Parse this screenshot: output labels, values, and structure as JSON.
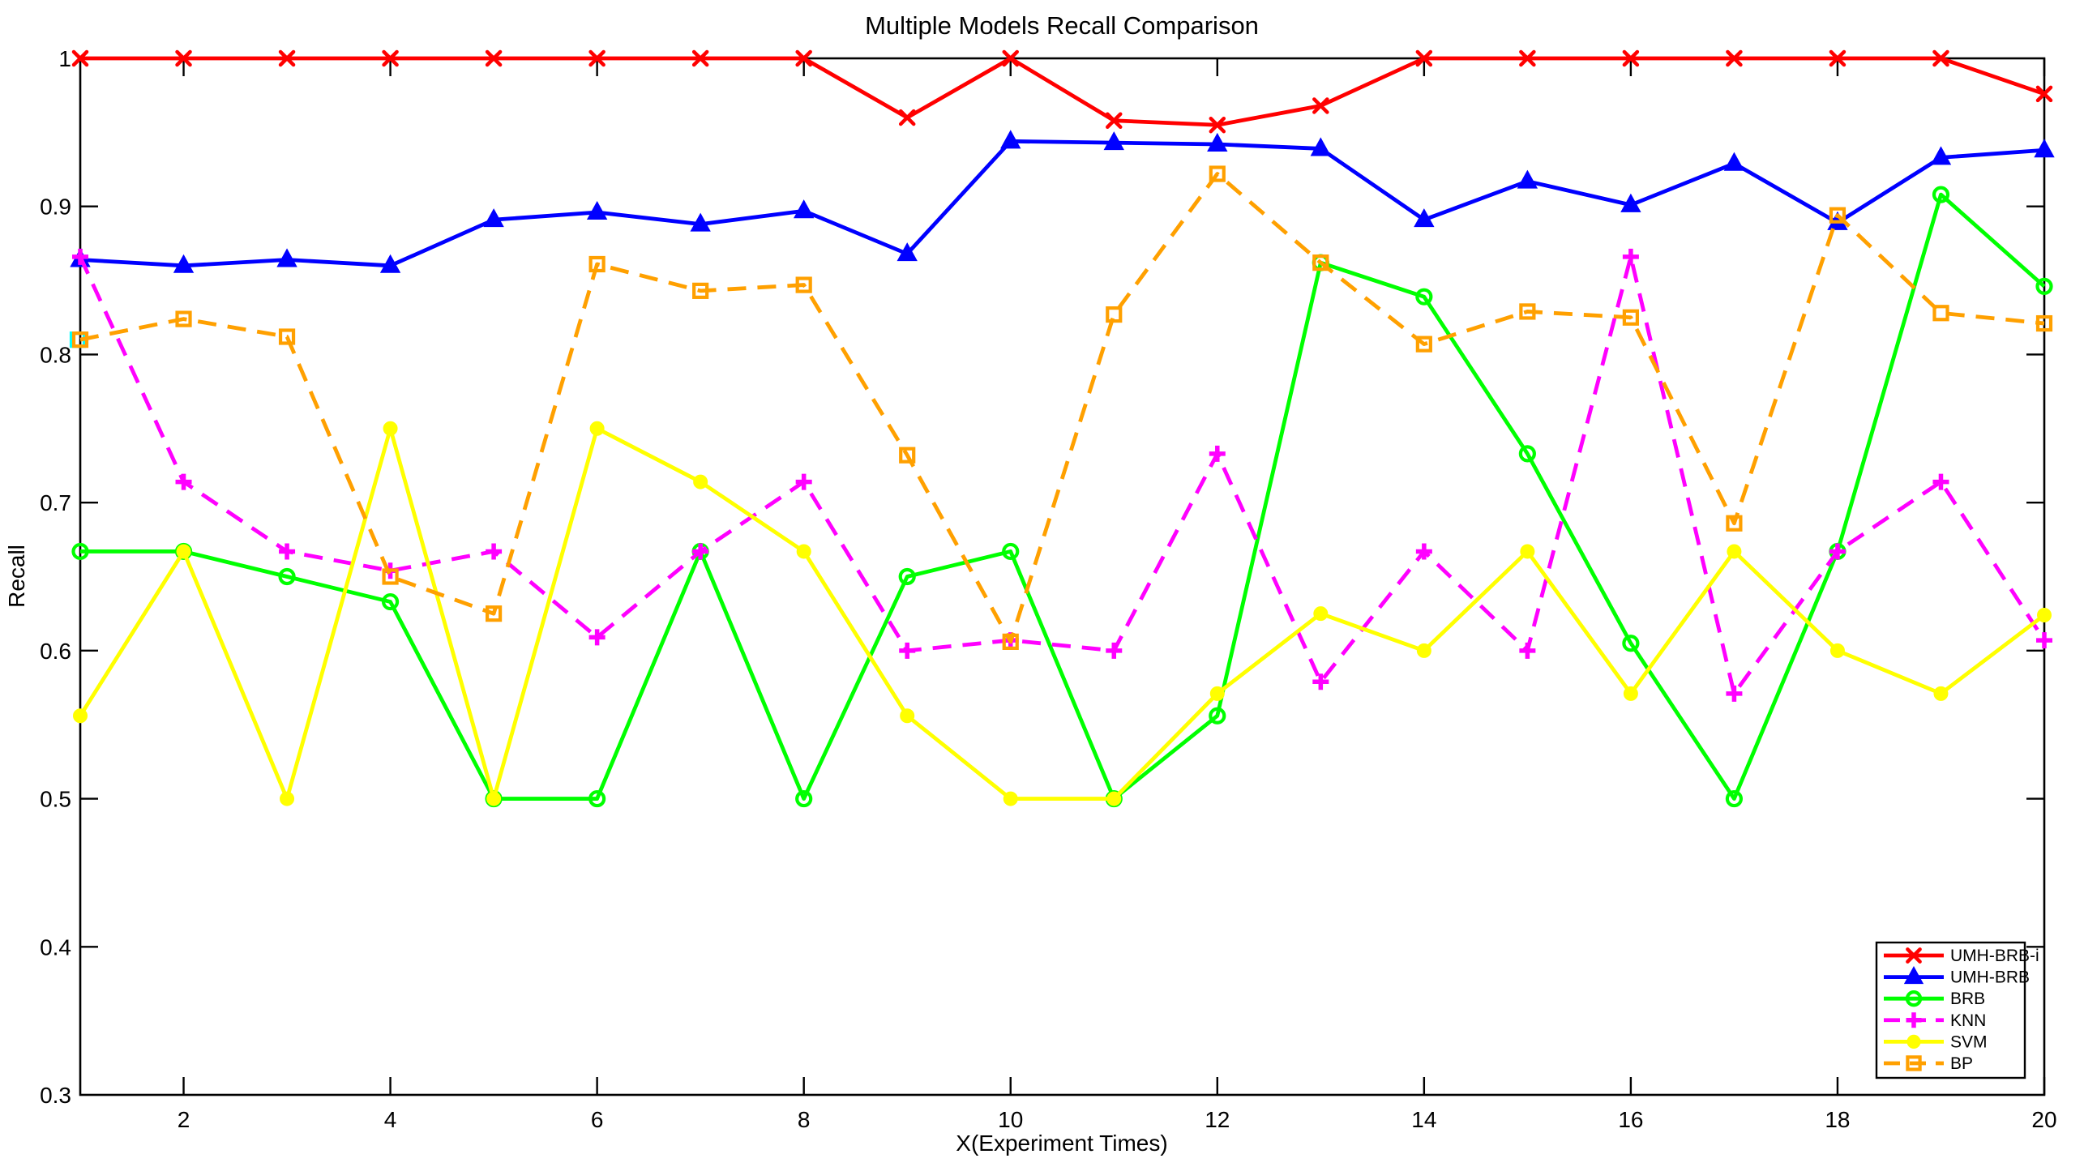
{
  "title": "Multiple Models Recall Comparison",
  "axes": {
    "xlabel": "X(Experiment Times)",
    "ylabel": "Recall",
    "xlim": [
      1,
      20
    ],
    "ylim": [
      0.3,
      1
    ],
    "x_ticks": [
      2,
      4,
      6,
      8,
      10,
      12,
      14,
      16,
      18,
      20
    ],
    "y_ticks": [
      0.3,
      0.4,
      0.5,
      0.6,
      0.7,
      0.8,
      0.9,
      1
    ],
    "y_tick_labels": [
      "0.3",
      "0.4",
      "0.5",
      "0.6",
      "0.7",
      "0.8",
      "0.9",
      "1"
    ],
    "grid": "off",
    "box": "on"
  },
  "legend": {
    "position": "bottom-right",
    "entries": [
      "UMH-BRB-i",
      "UMH-BRB",
      "BRB",
      "KNN",
      "SVM",
      "BP"
    ]
  },
  "colors": {
    "UMH-BRB-i": "#FF0000",
    "UMH-BRB": "#0000FF",
    "BRB": "#00FF00",
    "KNN": "#FF00FF",
    "SVM": "#FFFF00",
    "BP": "#FFA000",
    "axis": "#000000",
    "background": "#FFFFFF",
    "stray": "#00FFFF"
  },
  "chart_data": {
    "type": "line",
    "x": [
      1,
      2,
      3,
      4,
      5,
      6,
      7,
      8,
      9,
      10,
      11,
      12,
      13,
      14,
      15,
      16,
      17,
      18,
      19,
      20
    ],
    "series": [
      {
        "name": "UMH-BRB-i",
        "color": "#FF0000",
        "line_style": "solid",
        "marker": "x",
        "values": [
          1.0,
          1.0,
          1.0,
          1.0,
          1.0,
          1.0,
          1.0,
          1.0,
          0.96,
          1.0,
          0.958,
          0.955,
          0.968,
          1.0,
          1.0,
          1.0,
          1.0,
          1.0,
          1.0,
          0.976
        ]
      },
      {
        "name": "UMH-BRB",
        "color": "#0000FF",
        "line_style": "solid",
        "marker": "triangle",
        "values": [
          0.864,
          0.86,
          0.864,
          0.86,
          0.891,
          0.896,
          0.888,
          0.897,
          0.868,
          0.944,
          0.943,
          0.942,
          0.939,
          0.891,
          0.917,
          0.901,
          0.929,
          0.889,
          0.933,
          0.938
        ]
      },
      {
        "name": "BRB",
        "color": "#00FF00",
        "line_style": "solid",
        "marker": "circle-open",
        "values": [
          0.667,
          0.667,
          0.65,
          0.633,
          0.5,
          0.5,
          0.667,
          0.5,
          0.65,
          0.667,
          0.5,
          0.556,
          0.862,
          0.839,
          0.733,
          0.605,
          0.5,
          0.667,
          0.908,
          0.846
        ]
      },
      {
        "name": "KNN",
        "color": "#FF00FF",
        "line_style": "dashed",
        "marker": "plus",
        "values": [
          0.866,
          0.714,
          0.667,
          0.654,
          0.667,
          0.609,
          0.667,
          0.714,
          0.6,
          0.607,
          0.6,
          0.733,
          0.579,
          0.667,
          0.6,
          0.866,
          0.571,
          0.667,
          0.714,
          0.607
        ]
      },
      {
        "name": "SVM",
        "color": "#FFFF00",
        "line_style": "solid",
        "marker": "dot",
        "values": [
          0.556,
          0.667,
          0.5,
          0.75,
          0.5,
          0.75,
          0.714,
          0.667,
          0.556,
          0.5,
          0.5,
          0.571,
          0.625,
          0.6,
          0.667,
          0.571,
          0.667,
          0.6,
          0.571,
          0.624
        ]
      },
      {
        "name": "BP",
        "color": "#FFA000",
        "line_style": "dashed",
        "marker": "square-open",
        "values": [
          0.81,
          0.824,
          0.812,
          0.65,
          0.625,
          0.861,
          0.843,
          0.847,
          0.732,
          0.606,
          0.827,
          0.922,
          0.862,
          0.807,
          0.829,
          0.825,
          0.686,
          0.894,
          0.828,
          0.821
        ]
      }
    ],
    "artifacts": [
      {
        "name": "stray-cyan-marker",
        "x": 1,
        "y": 0.81,
        "color": "#00FFFF",
        "marker": "square-open"
      }
    ]
  }
}
